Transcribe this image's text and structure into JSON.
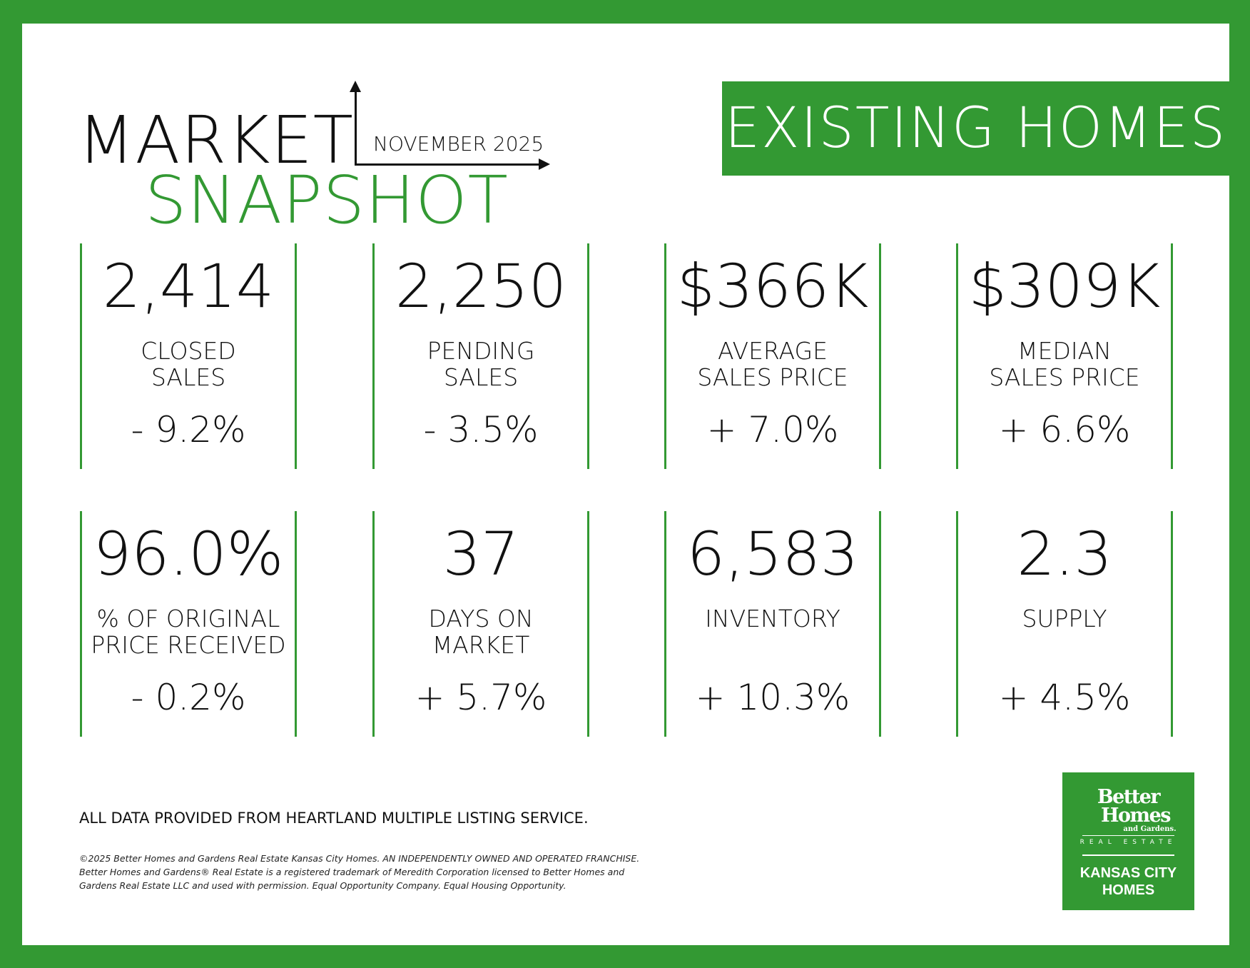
{
  "header": {
    "title_line1": "MARKET",
    "title_line2": "SNAPSHOT",
    "month": "NOVEMBER 2025",
    "badge": "EXISTING HOMES"
  },
  "colors": {
    "brand_green": "#339933",
    "text": "#111111"
  },
  "metrics": [
    {
      "value": "2,414",
      "label1": "CLOSED",
      "label2": "SALES",
      "change": "- 9.2%"
    },
    {
      "value": "2,250",
      "label1": "PENDING",
      "label2": "SALES",
      "change": "- 3.5%"
    },
    {
      "value": "$366K",
      "label1": "AVERAGE",
      "label2": "SALES PRICE",
      "change": "+ 7.0%"
    },
    {
      "value": "$309K",
      "label1": "MEDIAN",
      "label2": "SALES PRICE",
      "change": "+ 6.6%"
    },
    {
      "value": "96.0%",
      "label1": "% OF ORIGINAL",
      "label2": "PRICE RECEIVED",
      "change": "- 0.2%"
    },
    {
      "value": "37",
      "label1": "DAYS ON",
      "label2": "MARKET",
      "change": "+ 5.7%"
    },
    {
      "value": "6,583",
      "label1": "INVENTORY",
      "label2": "",
      "change": "+ 10.3%"
    },
    {
      "value": "2.3",
      "label1": "SUPPLY",
      "label2": "",
      "change": "+ 4.5%"
    }
  ],
  "footer": {
    "source": "ALL DATA PROVIDED FROM HEARTLAND MULTIPLE LISTING SERVICE.",
    "legal1": "©2025 Better Homes and Gardens Real Estate Kansas City Homes. AN INDEPENDENTLY OWNED AND OPERATED FRANCHISE.",
    "legal2": "Better Homes and Gardens® Real Estate is a registered trademark of Meredith Corporation licensed to Better Homes and Gardens Real Estate LLC and used with permission. Equal Opportunity Company. Equal Housing Opportunity."
  },
  "logo": {
    "line1": "Better",
    "line2": "Homes",
    "line3": "and Gardens.",
    "line4": "REAL ESTATE",
    "line5": "KANSAS CITY",
    "line6": "HOMES"
  }
}
